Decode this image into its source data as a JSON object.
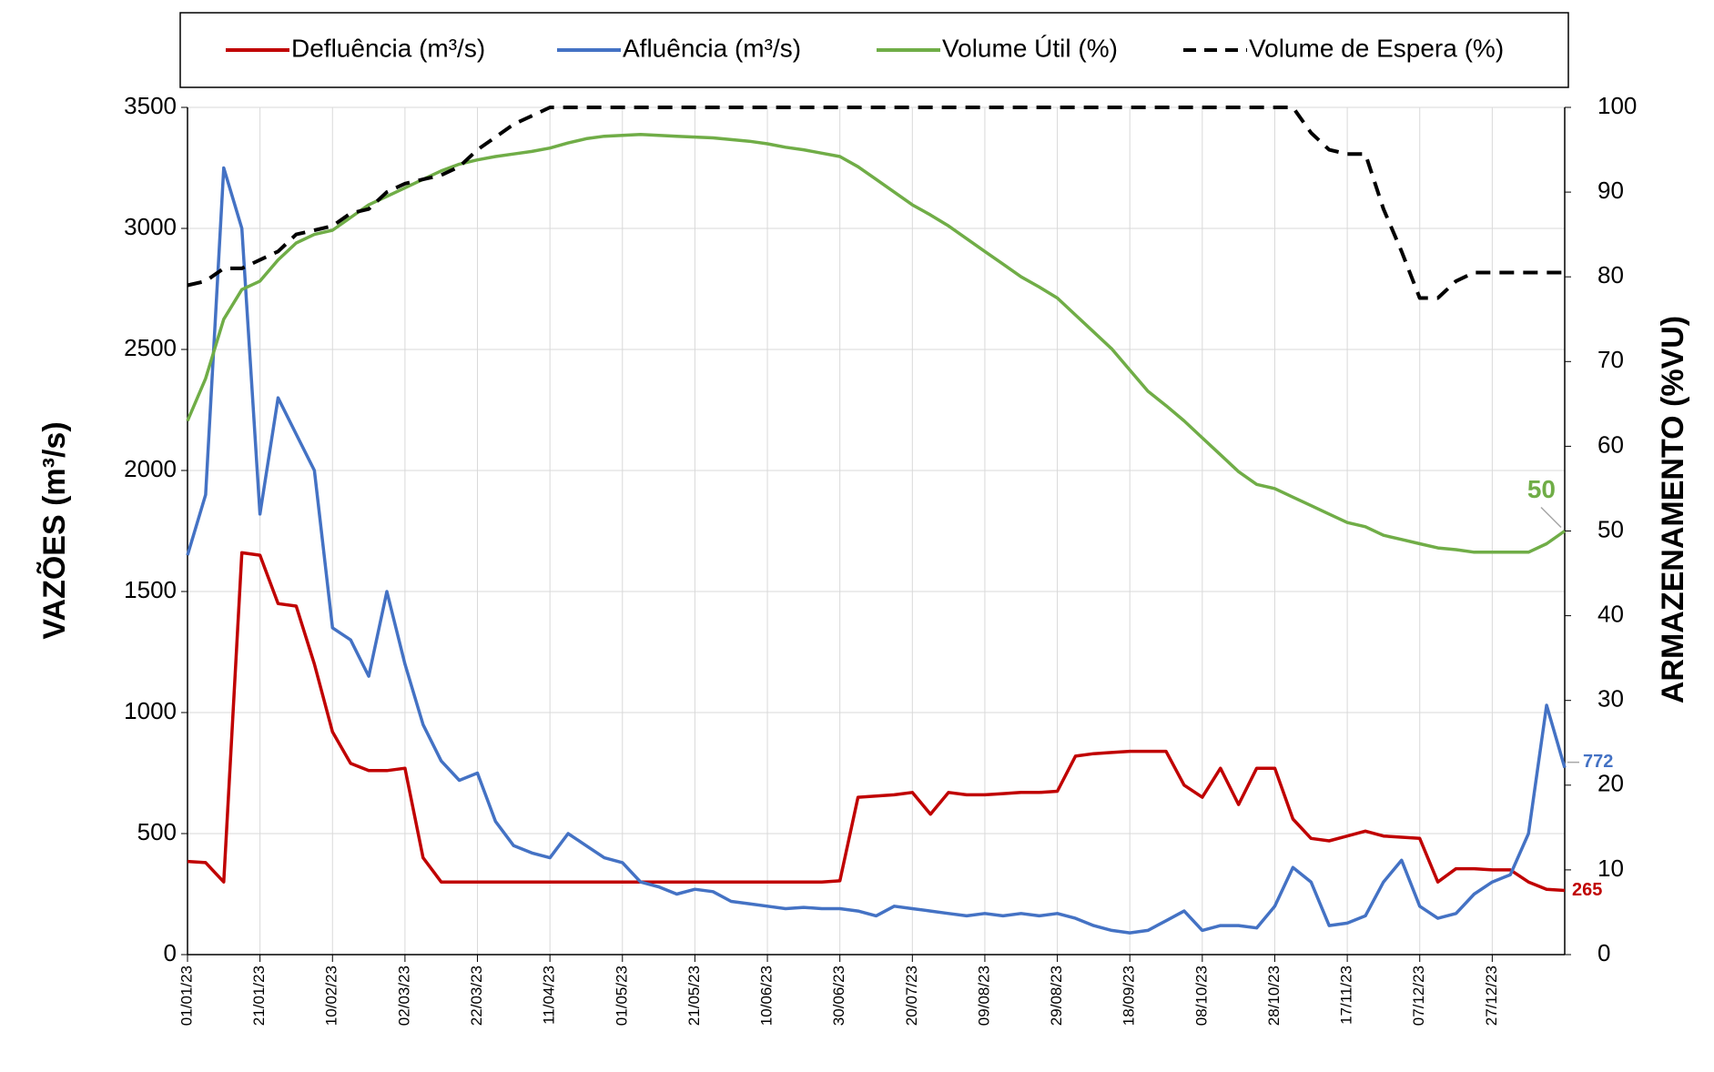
{
  "chart_data": {
    "type": "line",
    "y_label": "VAZÕES (m³/s)",
    "y2_label": "ARMAZENAMENTO (%VU)",
    "legend": "top",
    "grid": true,
    "x": [
      "01/01/23",
      "06/01/23",
      "11/01/23",
      "16/01/23",
      "21/01/23",
      "26/01/23",
      "31/01/23",
      "05/02/23",
      "10/02/23",
      "15/02/23",
      "20/02/23",
      "25/02/23",
      "02/03/23",
      "07/03/23",
      "12/03/23",
      "17/03/23",
      "22/03/23",
      "27/03/23",
      "01/04/23",
      "06/04/23",
      "11/04/23",
      "16/04/23",
      "21/04/23",
      "26/04/23",
      "01/05/23",
      "06/05/23",
      "11/05/23",
      "16/05/23",
      "21/05/23",
      "26/05/23",
      "31/05/23",
      "05/06/23",
      "10/06/23",
      "15/06/23",
      "20/06/23",
      "25/06/23",
      "30/06/23",
      "05/07/23",
      "10/07/23",
      "15/07/23",
      "20/07/23",
      "25/07/23",
      "30/07/23",
      "04/08/23",
      "09/08/23",
      "14/08/23",
      "19/08/23",
      "24/08/23",
      "29/08/23",
      "03/09/23",
      "08/09/23",
      "13/09/23",
      "18/09/23",
      "23/09/23",
      "28/09/23",
      "03/10/23",
      "08/10/23",
      "13/10/23",
      "18/10/23",
      "23/10/23",
      "28/10/23",
      "02/11/23",
      "07/11/23",
      "12/11/23",
      "17/11/23",
      "22/11/23",
      "27/11/23",
      "02/12/23",
      "07/12/23",
      "12/12/23",
      "17/12/23",
      "22/12/23",
      "27/12/23",
      "01/01/24",
      "06/01/24",
      "11/01/24",
      "16/01/24"
    ],
    "xlim": [
      "01/01/23",
      "16/01/24"
    ],
    "xticks": [
      "01/01/23",
      "21/01/23",
      "10/02/23",
      "02/03/23",
      "22/03/23",
      "11/04/23",
      "01/05/23",
      "21/05/23",
      "10/06/23",
      "30/06/23",
      "20/07/23",
      "09/08/23",
      "29/08/23",
      "18/09/23",
      "08/10/23",
      "28/10/23",
      "17/11/23",
      "07/12/23",
      "27/12/23"
    ],
    "ylim": [
      0,
      3500
    ],
    "yticks": [
      0,
      500,
      1000,
      1500,
      2000,
      2500,
      3000,
      3500
    ],
    "y2lim": [
      0,
      100
    ],
    "y2ticks": [
      0,
      10,
      20,
      30,
      40,
      50,
      60,
      70,
      80,
      90,
      100
    ],
    "series": [
      {
        "name": "Defluência (m³/s)",
        "color": "#c00000",
        "dash": false,
        "values": [
          385,
          380,
          300,
          1660,
          1650,
          1450,
          1440,
          1200,
          920,
          790,
          760,
          760,
          770,
          400,
          300,
          300,
          300,
          300,
          300,
          300,
          300,
          300,
          300,
          300,
          300,
          300,
          300,
          300,
          300,
          300,
          300,
          300,
          300,
          300,
          300,
          300,
          305,
          650,
          655,
          660,
          670,
          580,
          670,
          660,
          660,
          665,
          670,
          670,
          675,
          820,
          830,
          835,
          840,
          840,
          840,
          700,
          650,
          770,
          620,
          770,
          770,
          560,
          480,
          470,
          490,
          510,
          490,
          485,
          480,
          300,
          355,
          355,
          350,
          350,
          300,
          270,
          265
        ]
      },
      {
        "name": "Afluência (m³/s)",
        "color": "#4472c4",
        "dash": false,
        "values": [
          1650,
          1900,
          3250,
          3000,
          1820,
          2300,
          2150,
          2000,
          1350,
          1300,
          1150,
          1500,
          1200,
          950,
          800,
          720,
          750,
          550,
          450,
          420,
          400,
          500,
          450,
          400,
          380,
          300,
          280,
          250,
          270,
          260,
          220,
          210,
          200,
          190,
          195,
          190,
          190,
          180,
          160,
          200,
          190,
          180,
          170,
          160,
          170,
          160,
          170,
          160,
          170,
          150,
          120,
          100,
          90,
          100,
          140,
          180,
          100,
          120,
          120,
          110,
          200,
          360,
          300,
          120,
          130,
          160,
          300,
          390,
          200,
          150,
          170,
          250,
          300,
          330,
          500,
          1030,
          772
        ]
      },
      {
        "name": "Volume Útil (%)",
        "color": "#70ad47",
        "dash": false,
        "axis": "y2",
        "values": [
          63,
          68,
          75,
          78.5,
          79.5,
          82,
          84,
          85,
          85.5,
          87,
          88.5,
          89.5,
          90.5,
          91.5,
          92.5,
          93.3,
          93.8,
          94.2,
          94.5,
          94.8,
          95.2,
          95.8,
          96.3,
          96.6,
          96.7,
          96.8,
          96.7,
          96.6,
          96.5,
          96.4,
          96.2,
          96,
          95.7,
          95.3,
          95,
          94.6,
          94.2,
          93,
          91.5,
          90,
          88.5,
          87.3,
          86,
          84.5,
          83,
          81.5,
          80,
          78.8,
          77.5,
          75.5,
          73.5,
          71.5,
          69,
          66.5,
          64.8,
          63,
          61,
          59,
          57,
          55.5,
          55,
          54,
          53,
          52,
          51,
          50.5,
          49.5,
          49,
          48.5,
          48,
          47.8,
          47.5,
          47.5,
          47.5,
          47.5,
          48.5,
          50
        ]
      },
      {
        "name": "Volume de Espera (%)",
        "color": "#000000",
        "dash": true,
        "axis": "y2",
        "values": [
          79,
          79.5,
          81,
          81,
          82,
          83,
          85,
          85.5,
          86,
          87.5,
          88,
          90,
          91,
          91.5,
          92,
          93,
          95,
          96.5,
          98,
          99,
          100,
          100,
          100,
          100,
          100,
          100,
          100,
          100,
          100,
          100,
          100,
          100,
          100,
          100,
          100,
          100,
          100,
          100,
          100,
          100,
          100,
          100,
          100,
          100,
          100,
          100,
          100,
          100,
          100,
          100,
          100,
          100,
          100,
          100,
          100,
          100,
          100,
          100,
          100,
          100,
          100,
          100,
          97,
          95,
          94.5,
          94.5,
          88,
          83,
          77.5,
          77.5,
          79.5,
          80.5,
          80.5,
          80.5,
          80.5,
          80.5,
          80.5
        ]
      }
    ]
  }
}
